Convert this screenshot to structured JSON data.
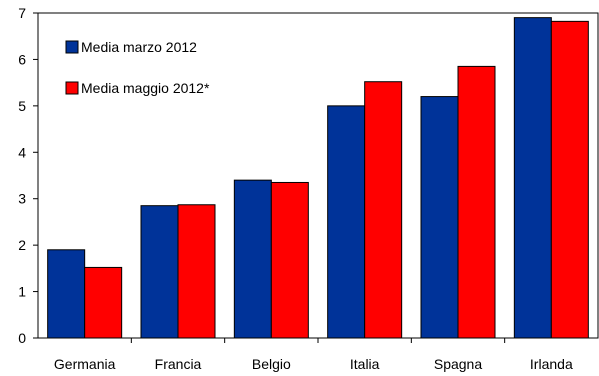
{
  "chart_data": {
    "type": "bar",
    "title": "",
    "xlabel": "",
    "ylabel": "",
    "categories": [
      "Germania",
      "Francia",
      "Belgio",
      "Italia",
      "Spagna",
      "Irlanda"
    ],
    "series": [
      {
        "name": "Media marzo  2012",
        "color": "#003399",
        "values": [
          1.9,
          2.85,
          3.4,
          5.0,
          5.2,
          6.9
        ]
      },
      {
        "name": "Media maggio 2012*",
        "color": "#ff0000",
        "values": [
          1.52,
          2.87,
          3.35,
          5.52,
          5.85,
          6.82
        ]
      }
    ],
    "ylim": [
      0,
      7
    ],
    "yticks": [
      0,
      1,
      2,
      3,
      4,
      5,
      6,
      7
    ],
    "grid": false,
    "legend_position": "top-left"
  }
}
